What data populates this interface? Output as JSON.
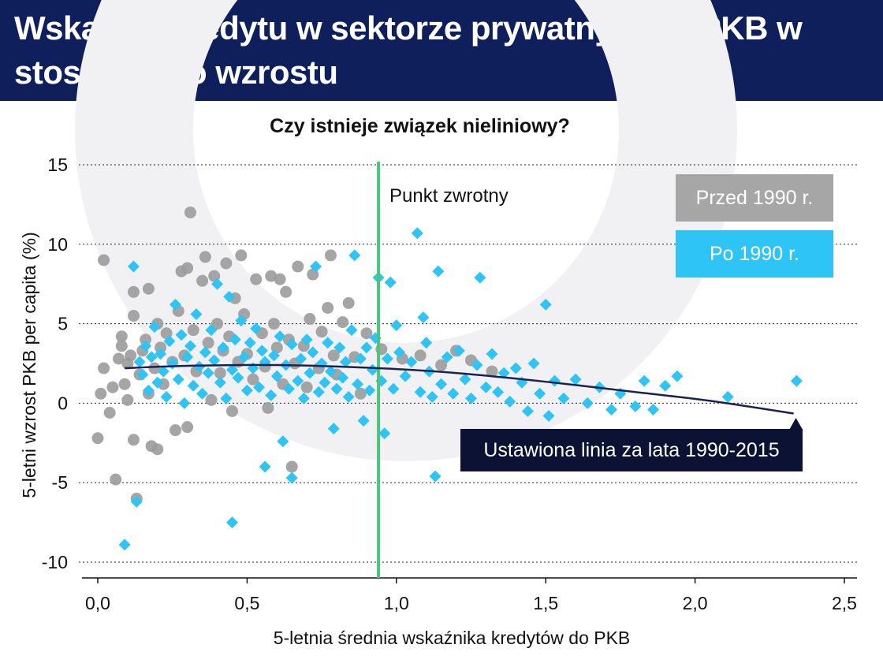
{
  "header": {
    "title": "Wskaźnik kredytu w sektorze prywatnym do PKB w stosunku do wzrostu"
  },
  "chart_data": {
    "type": "scatter",
    "title": "Czy istnieje związek nieliniowy?",
    "xlabel": "5-letnia średnia wskaźnika kredytów do PKB",
    "ylabel": "5-letni wzrost PKB per capita (%)",
    "xlim": [
      0,
      2.5
    ],
    "ylim": [
      -10,
      15
    ],
    "x_ticks": [
      "0,0",
      "0,5",
      "1,0",
      "1,5",
      "2,0",
      "2,5"
    ],
    "y_ticks": [
      "15",
      "10",
      "5",
      "0",
      "-5",
      "-10"
    ],
    "grid": "horizontal dotted",
    "legend_position": "top-right",
    "turning_point": {
      "x": 0.94,
      "label": "Punkt zwrotny",
      "color": "#4cc47a"
    },
    "fit_line": {
      "label": "Ustawiona linia za lata 1990-2015",
      "color": "#1a2350",
      "points": [
        [
          0.09,
          2.2
        ],
        [
          0.3,
          2.35
        ],
        [
          0.6,
          2.4
        ],
        [
          0.94,
          2.2
        ],
        [
          1.2,
          1.9
        ],
        [
          1.5,
          1.35
        ],
        [
          1.8,
          0.7
        ],
        [
          2.05,
          0.15
        ],
        [
          2.33,
          -0.65
        ]
      ]
    },
    "series": [
      {
        "name": "Przed 1990 r.",
        "color": "#9b9b9b",
        "marker": "circle",
        "points": [
          [
            0.0,
            -2.2
          ],
          [
            0.01,
            0.6
          ],
          [
            0.02,
            2.2
          ],
          [
            0.02,
            9.0
          ],
          [
            0.04,
            -0.6
          ],
          [
            0.05,
            1.0
          ],
          [
            0.06,
            -4.8
          ],
          [
            0.07,
            2.8
          ],
          [
            0.08,
            3.6
          ],
          [
            0.08,
            4.2
          ],
          [
            0.09,
            1.2
          ],
          [
            0.1,
            2.5
          ],
          [
            0.1,
            0.2
          ],
          [
            0.11,
            3.0
          ],
          [
            0.12,
            7.0
          ],
          [
            0.12,
            -2.3
          ],
          [
            0.12,
            5.5
          ],
          [
            0.13,
            -6.0
          ],
          [
            0.14,
            1.8
          ],
          [
            0.15,
            3.3
          ],
          [
            0.16,
            4.0
          ],
          [
            0.17,
            7.2
          ],
          [
            0.17,
            0.6
          ],
          [
            0.18,
            -2.7
          ],
          [
            0.19,
            2.2
          ],
          [
            0.2,
            5.0
          ],
          [
            0.2,
            -2.9
          ],
          [
            0.21,
            3.5
          ],
          [
            0.22,
            1.2
          ],
          [
            0.23,
            4.4
          ],
          [
            0.25,
            2.6
          ],
          [
            0.26,
            -1.7
          ],
          [
            0.27,
            5.8
          ],
          [
            0.28,
            8.3
          ],
          [
            0.29,
            3.0
          ],
          [
            0.3,
            -1.5
          ],
          [
            0.3,
            8.5
          ],
          [
            0.31,
            12.0
          ],
          [
            0.32,
            4.6
          ],
          [
            0.33,
            2.0
          ],
          [
            0.35,
            7.7
          ],
          [
            0.36,
            9.2
          ],
          [
            0.37,
            3.8
          ],
          [
            0.38,
            0.2
          ],
          [
            0.39,
            8.0
          ],
          [
            0.4,
            5.0
          ],
          [
            0.41,
            1.9
          ],
          [
            0.42,
            3.3
          ],
          [
            0.43,
            8.8
          ],
          [
            0.44,
            4.2
          ],
          [
            0.45,
            -0.5
          ],
          [
            0.46,
            6.6
          ],
          [
            0.47,
            2.6
          ],
          [
            0.48,
            9.3
          ],
          [
            0.49,
            5.6
          ],
          [
            0.5,
            3.1
          ],
          [
            0.52,
            1.5
          ],
          [
            0.53,
            7.8
          ],
          [
            0.55,
            4.4
          ],
          [
            0.56,
            2.3
          ],
          [
            0.57,
            -0.3
          ],
          [
            0.58,
            8.0
          ],
          [
            0.59,
            5.0
          ],
          [
            0.6,
            3.5
          ],
          [
            0.61,
            7.8
          ],
          [
            0.62,
            1.2
          ],
          [
            0.63,
            7.0
          ],
          [
            0.64,
            4.0
          ],
          [
            0.65,
            -4.0
          ],
          [
            0.66,
            2.5
          ],
          [
            0.67,
            8.6
          ],
          [
            0.69,
            3.6
          ],
          [
            0.7,
            1.0
          ],
          [
            0.71,
            5.3
          ],
          [
            0.72,
            8.1
          ],
          [
            0.74,
            2.2
          ],
          [
            0.75,
            4.5
          ],
          [
            0.77,
            6.0
          ],
          [
            0.78,
            9.3
          ],
          [
            0.79,
            3.0
          ],
          [
            0.8,
            1.8
          ],
          [
            0.82,
            5.1
          ],
          [
            0.84,
            6.3
          ],
          [
            0.86,
            2.9
          ],
          [
            0.88,
            0.6
          ],
          [
            0.9,
            4.4
          ],
          [
            0.95,
            3.4
          ],
          [
            1.02,
            2.8
          ],
          [
            1.08,
            3.0
          ],
          [
            1.15,
            2.4
          ],
          [
            1.2,
            3.3
          ],
          [
            1.25,
            2.7
          ],
          [
            1.32,
            2.0
          ]
        ]
      },
      {
        "name": "Po 1990 r.",
        "color": "#2ec4f5",
        "marker": "diamond",
        "points": [
          [
            0.09,
            -8.9
          ],
          [
            0.12,
            8.6
          ],
          [
            0.13,
            -6.2
          ],
          [
            0.14,
            2.6
          ],
          [
            0.15,
            1.8
          ],
          [
            0.16,
            3.6
          ],
          [
            0.17,
            0.8
          ],
          [
            0.18,
            2.9
          ],
          [
            0.19,
            4.8
          ],
          [
            0.2,
            1.3
          ],
          [
            0.21,
            3.1
          ],
          [
            0.22,
            2.0
          ],
          [
            0.23,
            0.4
          ],
          [
            0.24,
            3.9
          ],
          [
            0.25,
            2.5
          ],
          [
            0.26,
            6.2
          ],
          [
            0.27,
            1.5
          ],
          [
            0.28,
            4.3
          ],
          [
            0.29,
            0.0
          ],
          [
            0.3,
            2.9
          ],
          [
            0.31,
            3.6
          ],
          [
            0.32,
            1.1
          ],
          [
            0.33,
            5.6
          ],
          [
            0.34,
            2.3
          ],
          [
            0.35,
            0.6
          ],
          [
            0.36,
            3.2
          ],
          [
            0.37,
            1.9
          ],
          [
            0.38,
            4.6
          ],
          [
            0.39,
            2.7
          ],
          [
            0.4,
            7.5
          ],
          [
            0.41,
            1.3
          ],
          [
            0.42,
            3.5
          ],
          [
            0.43,
            0.3
          ],
          [
            0.44,
            6.7
          ],
          [
            0.45,
            2.1
          ],
          [
            0.45,
            -7.5
          ],
          [
            0.46,
            4.0
          ],
          [
            0.47,
            1.6
          ],
          [
            0.48,
            5.2
          ],
          [
            0.49,
            2.9
          ],
          [
            0.5,
            0.8
          ],
          [
            0.51,
            3.8
          ],
          [
            0.52,
            2.2
          ],
          [
            0.53,
            4.7
          ],
          [
            0.54,
            1.0
          ],
          [
            0.55,
            3.3
          ],
          [
            0.56,
            2.6
          ],
          [
            0.56,
            -4.0
          ],
          [
            0.58,
            0.5
          ],
          [
            0.59,
            3.0
          ],
          [
            0.6,
            1.7
          ],
          [
            0.61,
            4.2
          ],
          [
            0.62,
            -2.4
          ],
          [
            0.63,
            2.4
          ],
          [
            0.64,
            0.9
          ],
          [
            0.65,
            3.7
          ],
          [
            0.65,
            -4.7
          ],
          [
            0.67,
            1.4
          ],
          [
            0.68,
            2.8
          ],
          [
            0.69,
            0.3
          ],
          [
            0.7,
            4.0
          ],
          [
            0.71,
            1.9
          ],
          [
            0.72,
            3.2
          ],
          [
            0.73,
            8.6
          ],
          [
            0.74,
            0.7
          ],
          [
            0.75,
            2.5
          ],
          [
            0.76,
            1.3
          ],
          [
            0.77,
            3.8
          ],
          [
            0.78,
            2.0
          ],
          [
            0.79,
            -1.6
          ],
          [
            0.8,
            0.9
          ],
          [
            0.81,
            3.5
          ],
          [
            0.82,
            1.6
          ],
          [
            0.83,
            2.6
          ],
          [
            0.84,
            0.4
          ],
          [
            0.85,
            4.6
          ],
          [
            0.86,
            9.3
          ],
          [
            0.87,
            1.2
          ],
          [
            0.88,
            2.8
          ],
          [
            0.89,
            -1.1
          ],
          [
            0.9,
            3.5
          ],
          [
            0.91,
            0.8
          ],
          [
            0.92,
            2.1
          ],
          [
            0.93,
            4.1
          ],
          [
            0.94,
            7.9
          ],
          [
            0.95,
            1.4
          ],
          [
            0.96,
            -1.9
          ],
          [
            0.97,
            2.8
          ],
          [
            0.98,
            7.6
          ],
          [
            0.99,
            0.9
          ],
          [
            1.0,
            4.9
          ],
          [
            1.01,
            3.2
          ],
          [
            1.03,
            1.7
          ],
          [
            1.05,
            2.6
          ],
          [
            1.07,
            10.7
          ],
          [
            1.08,
            0.7
          ],
          [
            1.09,
            5.4
          ],
          [
            1.1,
            3.8
          ],
          [
            1.11,
            2.0
          ],
          [
            1.12,
            0.4
          ],
          [
            1.13,
            -4.6
          ],
          [
            1.14,
            8.3
          ],
          [
            1.15,
            1.2
          ],
          [
            1.17,
            2.9
          ],
          [
            1.19,
            0.6
          ],
          [
            1.21,
            3.3
          ],
          [
            1.23,
            1.5
          ],
          [
            1.25,
            0.3
          ],
          [
            1.27,
            2.4
          ],
          [
            1.28,
            7.9
          ],
          [
            1.3,
            1.0
          ],
          [
            1.32,
            3.1
          ],
          [
            1.34,
            0.7
          ],
          [
            1.36,
            1.9
          ],
          [
            1.38,
            0.1
          ],
          [
            1.4,
            2.2
          ],
          [
            1.42,
            1.3
          ],
          [
            1.44,
            -0.5
          ],
          [
            1.46,
            2.5
          ],
          [
            1.48,
            0.6
          ],
          [
            1.5,
            6.2
          ],
          [
            1.51,
            -0.8
          ],
          [
            1.53,
            1.4
          ],
          [
            1.56,
            0.3
          ],
          [
            1.6,
            1.5
          ],
          [
            1.64,
            0.0
          ],
          [
            1.68,
            1.0
          ],
          [
            1.72,
            -0.4
          ],
          [
            1.75,
            0.6
          ],
          [
            1.8,
            -0.2
          ],
          [
            1.83,
            1.4
          ],
          [
            1.86,
            -0.4
          ],
          [
            1.9,
            1.1
          ],
          [
            1.94,
            1.7
          ],
          [
            2.11,
            0.4
          ],
          [
            2.34,
            1.4
          ]
        ]
      }
    ]
  }
}
